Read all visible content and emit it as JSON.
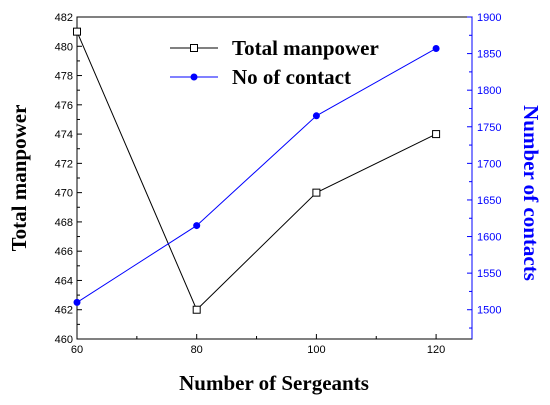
{
  "chart_data": {
    "type": "line",
    "x": [
      60,
      80,
      100,
      120
    ],
    "xlabel": "Number of Sergeants",
    "xlim": [
      60,
      126
    ],
    "x_ticks": [
      "60",
      "80",
      "100",
      "120"
    ],
    "series": [
      {
        "name": "Total manpower",
        "axis": "left",
        "values": [
          481,
          462,
          470,
          474
        ],
        "color": "#000000",
        "marker": "open-square"
      },
      {
        "name": "No of contact",
        "axis": "right",
        "values": [
          1510,
          1615,
          1765,
          1857
        ],
        "color": "#0000ff",
        "marker": "filled-circle"
      }
    ],
    "ylabel_left": "Total manpower",
    "ylim_left": [
      460,
      482
    ],
    "y_ticks_left": [
      "460",
      "462",
      "464",
      "466",
      "468",
      "470",
      "472",
      "474",
      "476",
      "478",
      "480",
      "482"
    ],
    "ylabel_right": "Number of contacts",
    "ylim_right": [
      1460,
      1900
    ],
    "y_ticks_right": [
      "1500",
      "1550",
      "1600",
      "1650",
      "1700",
      "1750",
      "1800",
      "1850",
      "1900"
    ],
    "right_axis_color": "#0000ff",
    "legend_position": "top-center",
    "grid": false
  }
}
